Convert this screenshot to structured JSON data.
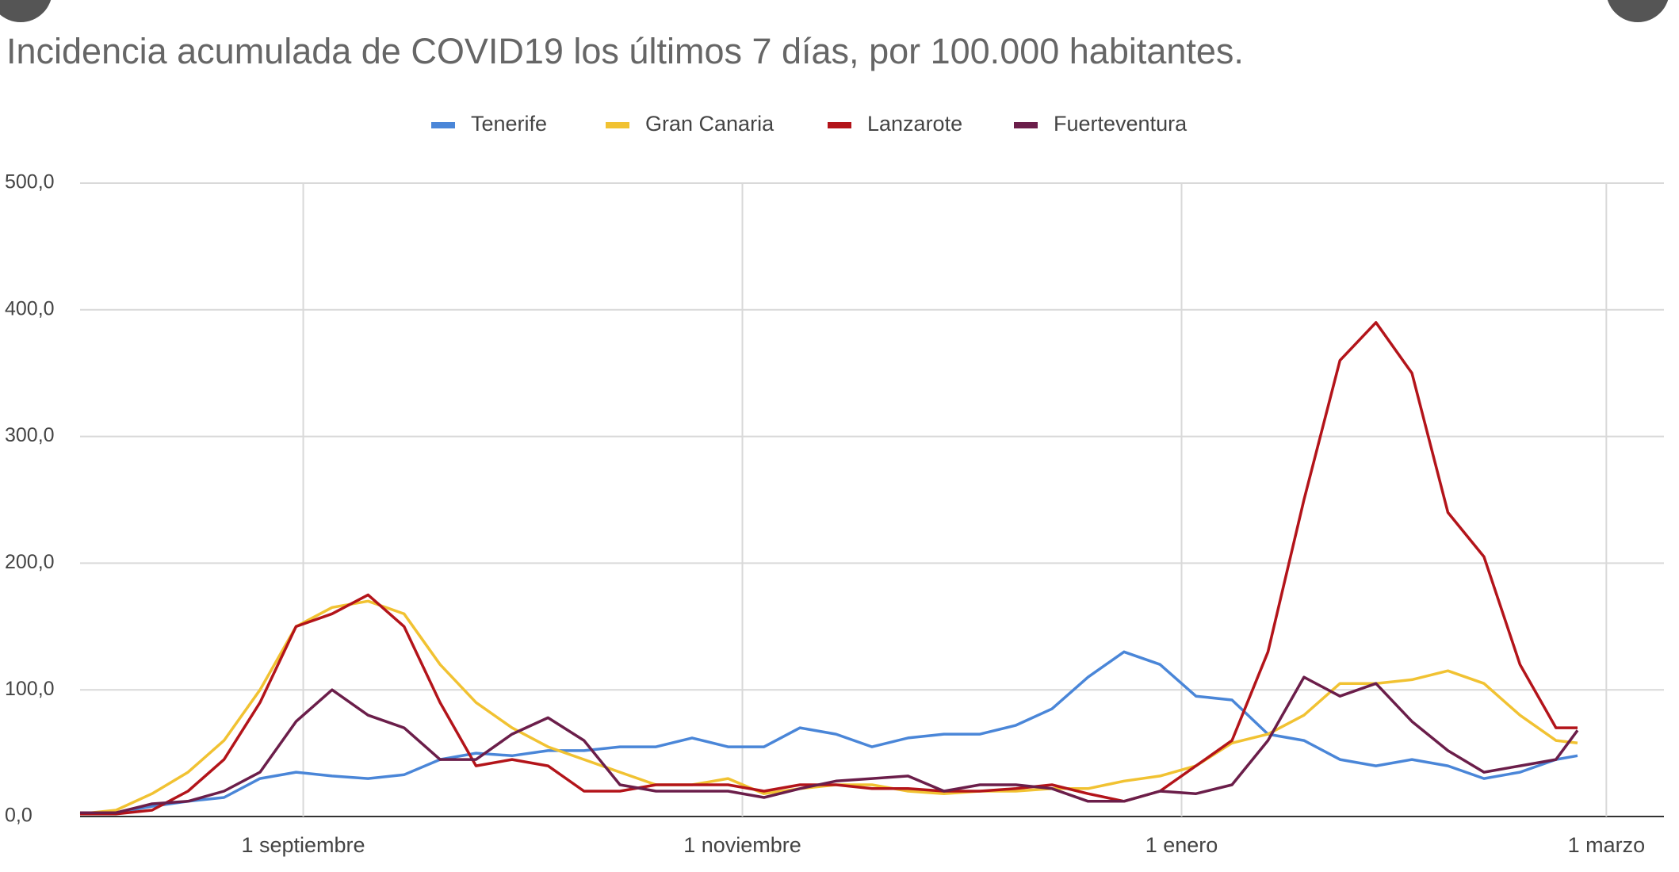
{
  "chart_data": {
    "type": "line",
    "title": "Incidencia acumulada de COVID19 los últimos 7 días, por 100.000 habitantes.",
    "x": [
      0,
      5,
      10,
      15,
      20,
      25,
      30,
      35,
      40,
      45,
      50,
      55,
      60,
      65,
      70,
      75,
      80,
      85,
      90,
      95,
      100,
      105,
      110,
      115,
      120,
      125,
      130,
      135,
      140,
      145,
      150,
      155,
      160,
      165,
      170,
      175,
      180,
      185,
      190,
      195,
      200,
      205,
      208
    ],
    "xlim": [
      0,
      220
    ],
    "xticks": [
      {
        "value": 31,
        "label": "1 septiembre"
      },
      {
        "value": 92,
        "label": "1 noviembre"
      },
      {
        "value": 153,
        "label": "1 enero"
      },
      {
        "value": 212,
        "label": "1 marzo"
      }
    ],
    "ylim": [
      0,
      500
    ],
    "yticks": [
      {
        "value": 0,
        "label": "0,0"
      },
      {
        "value": 100,
        "label": "100,0"
      },
      {
        "value": 200,
        "label": "200,0"
      },
      {
        "value": 300,
        "label": "300,0"
      },
      {
        "value": 400,
        "label": "400,0"
      },
      {
        "value": 500,
        "label": "500,0"
      }
    ],
    "grid": true,
    "legend": "top",
    "series": [
      {
        "name": "Tenerife",
        "color": "#4a86d8",
        "values": [
          2,
          3,
          8,
          12,
          15,
          30,
          35,
          32,
          30,
          33,
          45,
          50,
          48,
          52,
          52,
          55,
          55,
          62,
          55,
          55,
          70,
          65,
          55,
          62,
          65,
          65,
          72,
          85,
          110,
          130,
          120,
          95,
          92,
          65,
          60,
          45,
          40,
          45,
          40,
          30,
          35,
          45,
          48
        ]
      },
      {
        "name": "Gran Canaria",
        "color": "#f1c232",
        "values": [
          2,
          5,
          18,
          35,
          60,
          100,
          150,
          165,
          170,
          160,
          120,
          90,
          70,
          55,
          45,
          35,
          25,
          25,
          30,
          18,
          22,
          25,
          25,
          20,
          18,
          20,
          20,
          22,
          22,
          28,
          32,
          40,
          58,
          65,
          80,
          105,
          105,
          108,
          115,
          105,
          80,
          60,
          58
        ]
      },
      {
        "name": "Lanzarote",
        "color": "#b3141a",
        "values": [
          2,
          2,
          5,
          20,
          45,
          90,
          150,
          160,
          175,
          150,
          90,
          40,
          45,
          40,
          20,
          20,
          25,
          25,
          25,
          20,
          25,
          25,
          22,
          22,
          20,
          20,
          22,
          25,
          18,
          12,
          20,
          40,
          60,
          130,
          250,
          360,
          390,
          350,
          240,
          205,
          120,
          70,
          70
        ]
      },
      {
        "name": "Fuerteventura",
        "color": "#6b1e4a",
        "values": [
          3,
          3,
          10,
          12,
          20,
          35,
          75,
          100,
          80,
          70,
          45,
          45,
          65,
          78,
          60,
          25,
          20,
          20,
          20,
          15,
          22,
          28,
          30,
          32,
          20,
          25,
          25,
          22,
          12,
          12,
          20,
          18,
          25,
          60,
          110,
          95,
          105,
          75,
          52,
          35,
          40,
          45,
          68
        ]
      }
    ]
  }
}
